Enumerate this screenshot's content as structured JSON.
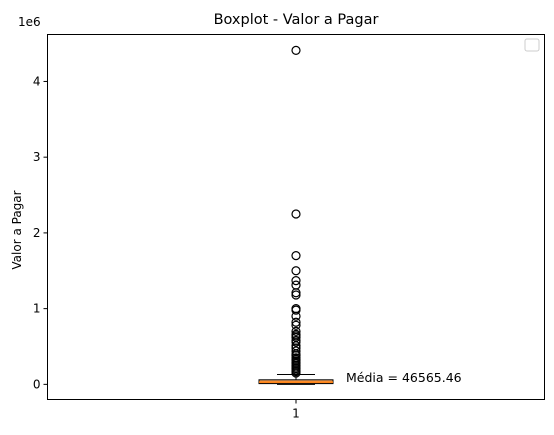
{
  "chart_data": {
    "type": "boxplot",
    "title": "Boxplot - Valor a Pagar",
    "xlabel": "",
    "ylabel": "Valor a Pagar",
    "offset_text": "1e6",
    "y_scale_factor": 1000000,
    "x_categories": [
      "1"
    ],
    "ylim": [
      -200000,
      4620000
    ],
    "y_ticks": [
      0,
      1000000,
      2000000,
      3000000,
      4000000
    ],
    "y_tick_labels": [
      "0",
      "1",
      "2",
      "3",
      "4"
    ],
    "box": {
      "q1": 10000,
      "median": 30000,
      "q3": 60000,
      "whisker_low": 0,
      "whisker_high": 130000,
      "color": "#f4a460",
      "median_color": "#ff7f0e"
    },
    "outliers": [
      4410000,
      2250000,
      1700000,
      1500000,
      1370000,
      1310000,
      1210000,
      1180000,
      1000000,
      980000,
      900000,
      820000,
      780000,
      700000,
      660000,
      640000,
      620000,
      580000,
      560000,
      510000,
      480000,
      440000,
      400000,
      380000,
      350000,
      330000,
      310000,
      290000,
      270000,
      250000,
      230000,
      210000,
      190000,
      170000,
      150000
    ],
    "mean_annotation": {
      "text": "Média = 46565.46",
      "value": 46565.46,
      "color": "#0000ff"
    },
    "grid": false,
    "legend_position": "top-right",
    "legend_entries": []
  }
}
